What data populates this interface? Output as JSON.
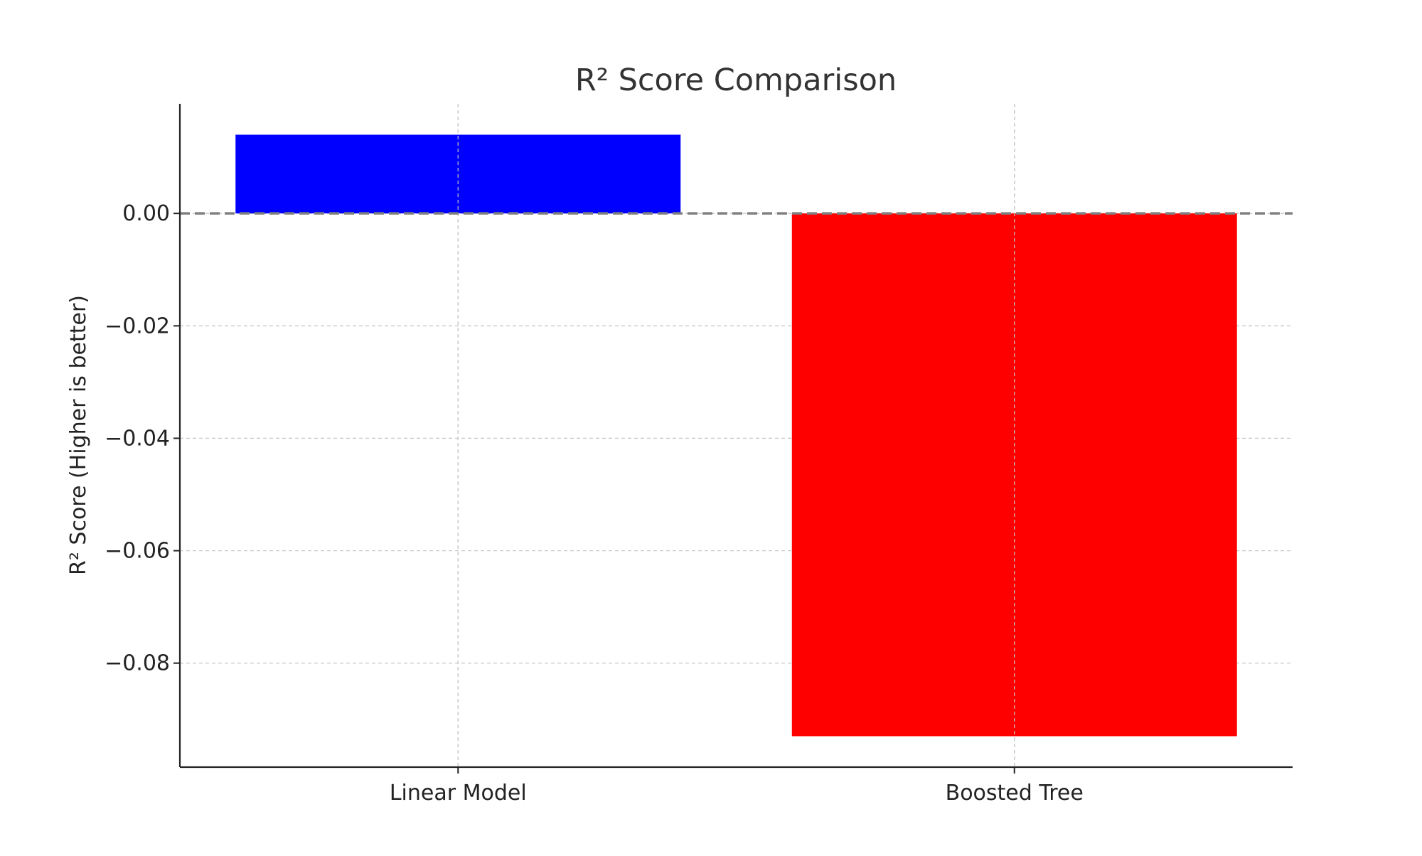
{
  "chart_data": {
    "type": "bar",
    "title": "R² Score Comparison",
    "xlabel": "",
    "ylabel": "R² Score (Higher is better)",
    "categories": [
      "Linear Model",
      "Boosted Tree"
    ],
    "values": [
      0.014,
      -0.093
    ],
    "bar_colors": [
      "#0000ff",
      "#ff0000"
    ],
    "ylim": [
      -0.0985,
      0.0195
    ],
    "yticks": [
      0.0,
      -0.02,
      -0.04,
      -0.06,
      -0.08
    ],
    "ytick_labels": [
      "0.00",
      "−0.02",
      "−0.04",
      "−0.06",
      "−0.08"
    ],
    "grid": true,
    "reference_line": {
      "value": 0,
      "style": "dashed",
      "color": "#808080"
    }
  }
}
